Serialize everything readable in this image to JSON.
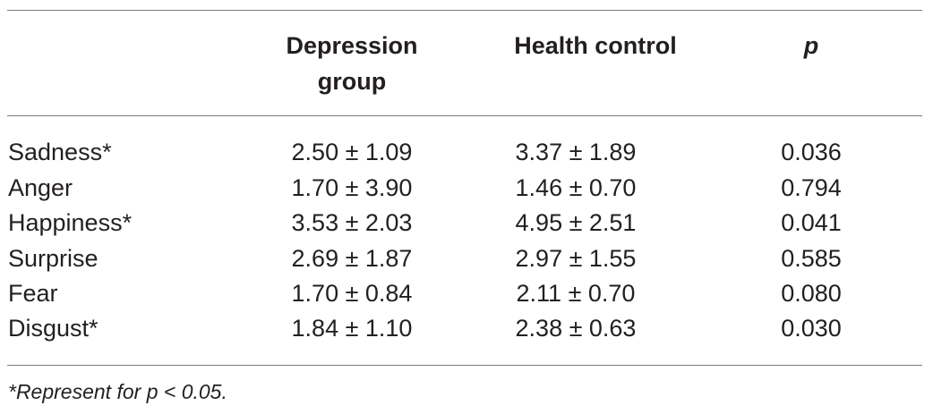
{
  "table": {
    "headers": {
      "label": "",
      "depression_group": "Depression group",
      "health_control": "Health control",
      "p": "p"
    },
    "rows": [
      {
        "label": "Sadness*",
        "depression_group": "2.50 ± 1.09",
        "health_control": "3.37 ± 1.89",
        "p": "0.036"
      },
      {
        "label": "Anger",
        "depression_group": "1.70 ± 3.90",
        "health_control": "1.46 ± 0.70",
        "p": "0.794"
      },
      {
        "label": "Happiness*",
        "depression_group": "3.53 ± 2.03",
        "health_control": "4.95 ± 2.51",
        "p": "0.041"
      },
      {
        "label": "Surprise",
        "depression_group": "2.69 ± 1.87",
        "health_control": "2.97 ± 1.55",
        "p": "0.585"
      },
      {
        "label": "Fear",
        "depression_group": "1.70 ± 0.84",
        "health_control": "2.11 ± 0.70",
        "p": "0.080"
      },
      {
        "label": "Disgust*",
        "depression_group": "1.84 ± 1.10",
        "health_control": "2.38 ± 0.63",
        "p": "0.030"
      }
    ],
    "footnote": "*Represent for p < 0.05."
  }
}
